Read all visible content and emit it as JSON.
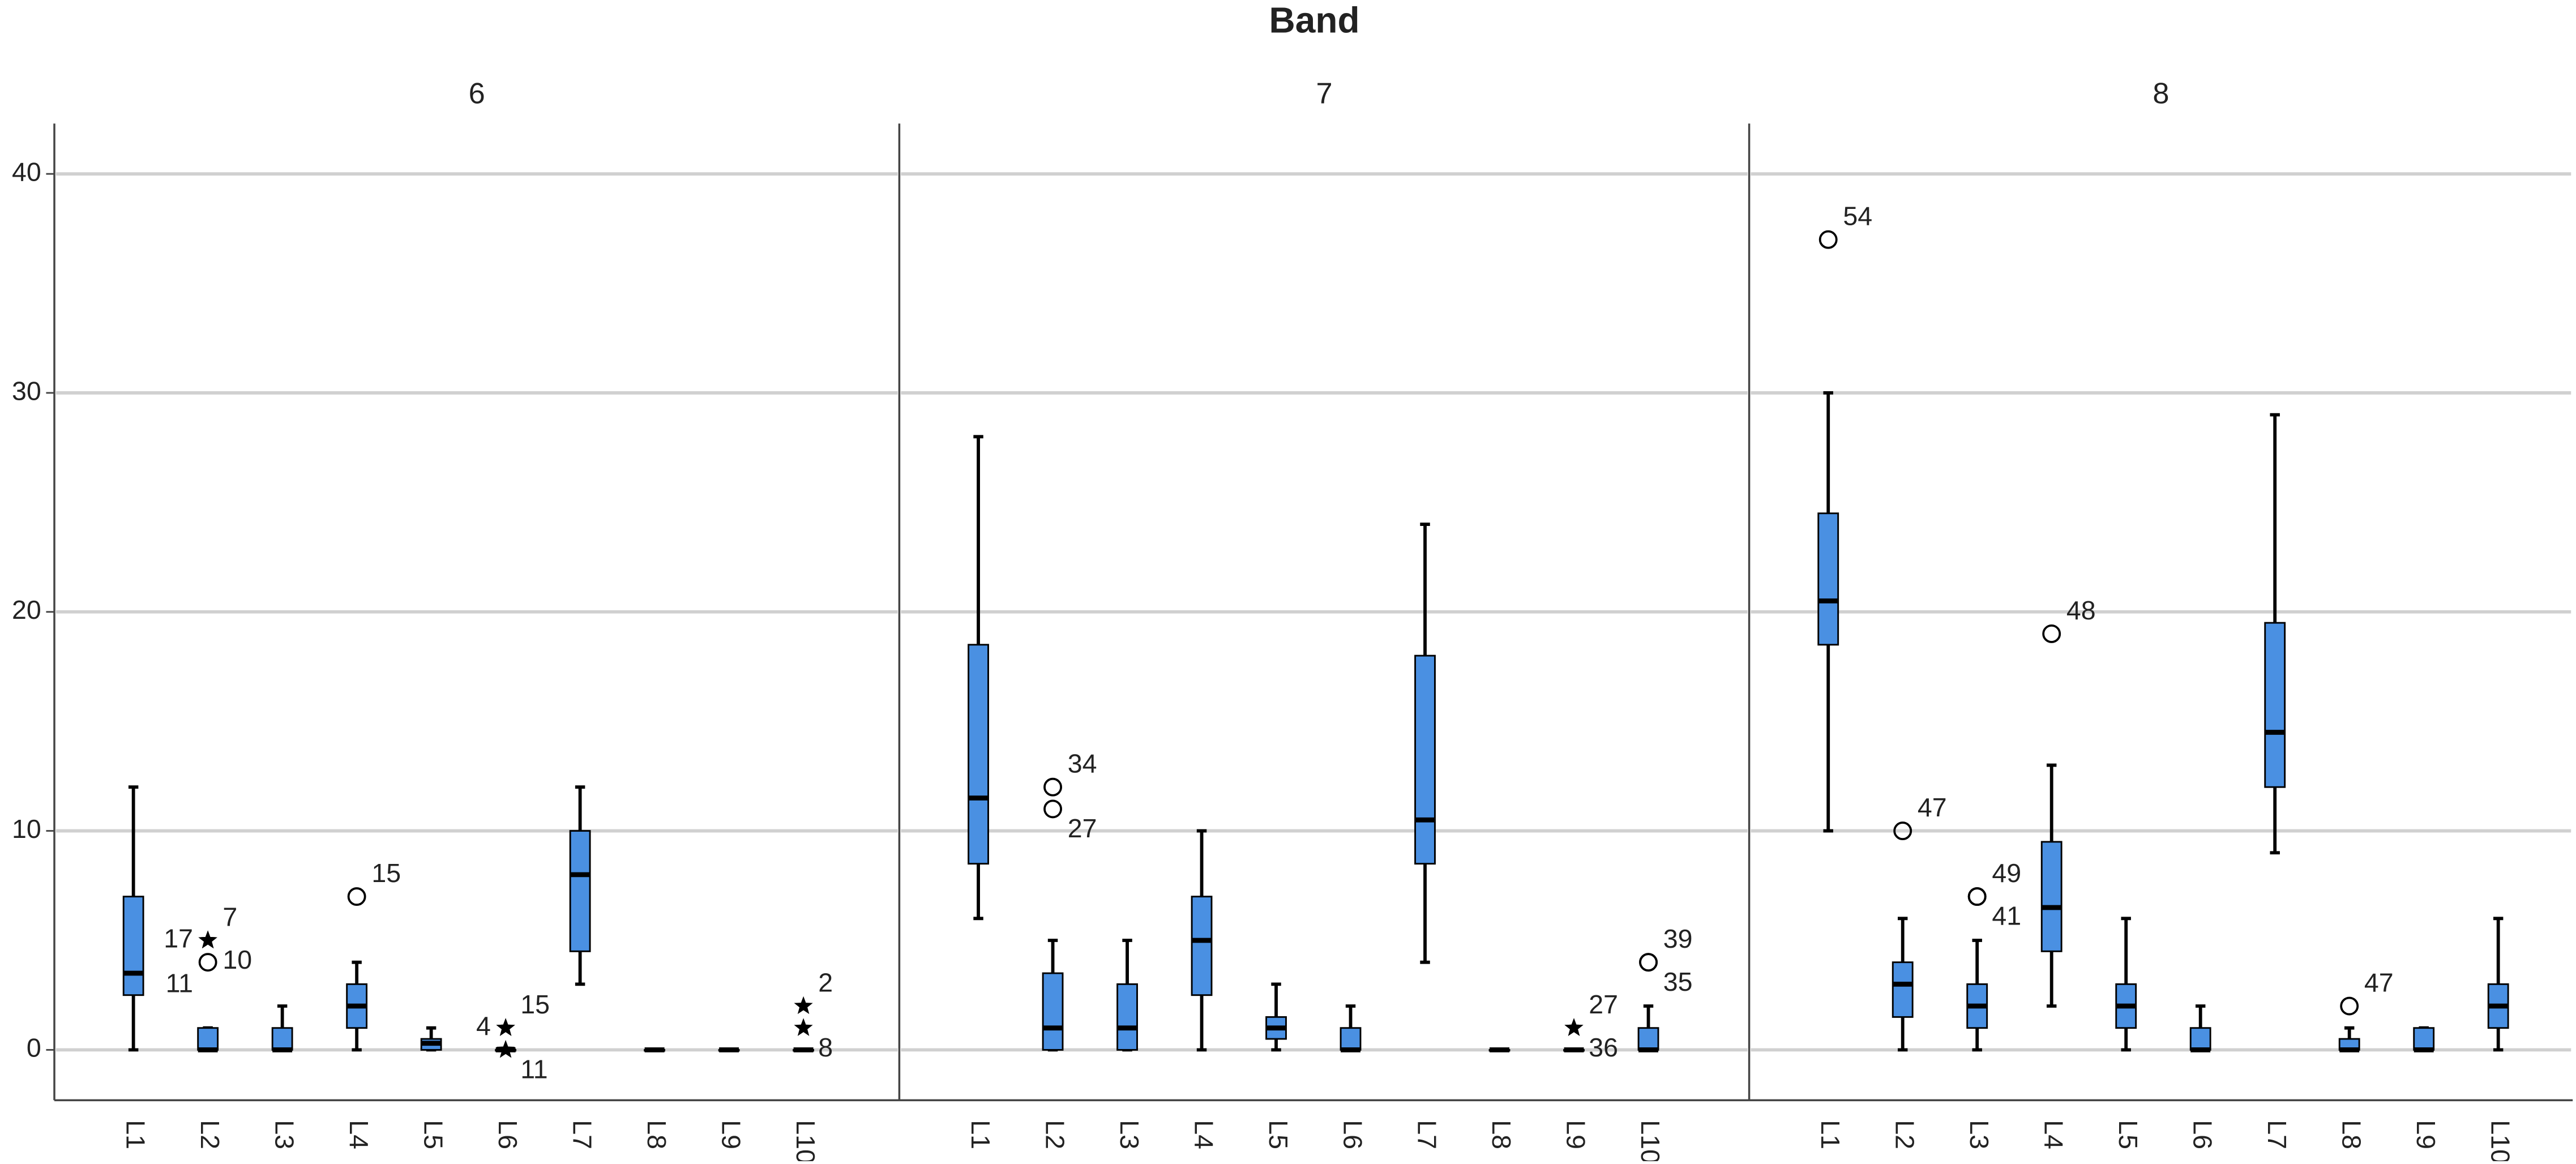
{
  "title": "Band",
  "chart_data": [
    {
      "type": "box",
      "title": "6",
      "color": "#4a90e2",
      "ylim": [
        -2.3,
        42.3
      ],
      "yticks": [
        0,
        10,
        20,
        30,
        40
      ],
      "grid": true,
      "categories": [
        "L1",
        "L2",
        "L3",
        "L4",
        "L5",
        "L6",
        "L7",
        "L8",
        "L9",
        "L10"
      ],
      "boxes": [
        {
          "min": 0,
          "q1": 2.5,
          "median": 3.5,
          "q3": 7,
          "max": 12,
          "outliers": []
        },
        {
          "min": 0,
          "q1": 0,
          "median": 0,
          "q3": 1,
          "max": 1,
          "outliers": [
            {
              "value": 5,
              "marker": "star",
              "label": "7"
            },
            {
              "value": 5,
              "marker": "star",
              "label": "10"
            },
            {
              "value": 5,
              "marker": "star",
              "label": "17"
            },
            {
              "value": 4,
              "marker": "circle",
              "label": "11"
            }
          ]
        },
        {
          "min": 0,
          "q1": 0,
          "median": 0,
          "q3": 1,
          "max": 2,
          "outliers": []
        },
        {
          "min": 0,
          "q1": 1,
          "median": 2,
          "q3": 3,
          "max": 4,
          "outliers": [
            {
              "value": 7,
              "marker": "circle",
              "label": "15"
            }
          ]
        },
        {
          "min": 0,
          "q1": 0,
          "median": 0.3,
          "q3": 0.5,
          "max": 1,
          "outliers": []
        },
        {
          "min": 0,
          "q1": 0,
          "median": 0,
          "q3": 0,
          "max": 0,
          "outliers": [
            {
              "value": 1,
              "marker": "star",
              "label": "15"
            },
            {
              "value": 0,
              "marker": "star",
              "label": "11"
            },
            {
              "value": 1,
              "marker": "star",
              "label": "4"
            }
          ]
        },
        {
          "min": 3,
          "q1": 4.5,
          "median": 8,
          "q3": 10,
          "max": 12,
          "outliers": []
        },
        {
          "min": 0,
          "q1": 0,
          "median": 0,
          "q3": 0,
          "max": 0,
          "outliers": []
        },
        {
          "min": 0,
          "q1": 0,
          "median": 0,
          "q3": 0,
          "max": 0,
          "outliers": []
        },
        {
          "min": 0,
          "q1": 0,
          "median": 0,
          "q3": 0,
          "max": 0,
          "outliers": [
            {
              "value": 2,
              "marker": "star",
              "label": "2"
            },
            {
              "value": 1,
              "marker": "star",
              "label": "8"
            }
          ]
        }
      ]
    },
    {
      "type": "box",
      "title": "7",
      "color": "#4a90e2",
      "ylim": [
        -2.3,
        42.3
      ],
      "yticks": [
        0,
        10,
        20,
        30,
        40
      ],
      "grid": true,
      "categories": [
        "L1",
        "L2",
        "L3",
        "L4",
        "L5",
        "L6",
        "L7",
        "L8",
        "L9",
        "L10"
      ],
      "boxes": [
        {
          "min": 6,
          "q1": 8.5,
          "median": 11.5,
          "q3": 18.5,
          "max": 28,
          "outliers": []
        },
        {
          "min": 0,
          "q1": 0,
          "median": 1,
          "q3": 3.5,
          "max": 5,
          "outliers": [
            {
              "value": 12,
              "marker": "circle",
              "label": "34"
            },
            {
              "value": 11,
              "marker": "circle",
              "label": "27"
            }
          ]
        },
        {
          "min": 0,
          "q1": 0,
          "median": 1,
          "q3": 3,
          "max": 5,
          "outliers": []
        },
        {
          "min": 0,
          "q1": 2.5,
          "median": 5,
          "q3": 7,
          "max": 10,
          "outliers": []
        },
        {
          "min": 0,
          "q1": 0.5,
          "median": 1,
          "q3": 1.5,
          "max": 3,
          "outliers": []
        },
        {
          "min": 0,
          "q1": 0,
          "median": 0,
          "q3": 1,
          "max": 2,
          "outliers": []
        },
        {
          "min": 4,
          "q1": 8.5,
          "median": 10.5,
          "q3": 18,
          "max": 24,
          "outliers": []
        },
        {
          "min": 0,
          "q1": 0,
          "median": 0,
          "q3": 0,
          "max": 0,
          "outliers": []
        },
        {
          "min": 0,
          "q1": 0,
          "median": 0,
          "q3": 0,
          "max": 0,
          "outliers": [
            {
              "value": 1,
              "marker": "star",
              "label": "27"
            },
            {
              "value": 1,
              "marker": "star",
              "label": "36"
            }
          ]
        },
        {
          "min": 0,
          "q1": 0,
          "median": 0,
          "q3": 1,
          "max": 2,
          "outliers": [
            {
              "value": 4,
              "marker": "circle",
              "label": "39"
            },
            {
              "value": 4,
              "marker": "circle",
              "label": "35"
            }
          ]
        }
      ]
    },
    {
      "type": "box",
      "title": "8",
      "color": "#4a90e2",
      "ylim": [
        -2.3,
        42.3
      ],
      "yticks": [
        0,
        10,
        20,
        30,
        40
      ],
      "grid": true,
      "categories": [
        "L1",
        "L2",
        "L3",
        "L4",
        "L5",
        "L6",
        "L7",
        "L8",
        "L9",
        "L10"
      ],
      "boxes": [
        {
          "min": 10,
          "q1": 18.5,
          "median": 20.5,
          "q3": 24.5,
          "max": 30,
          "outliers": [
            {
              "value": 37,
              "marker": "circle",
              "label": "54"
            }
          ]
        },
        {
          "min": 0,
          "q1": 1.5,
          "median": 3,
          "q3": 4,
          "max": 6,
          "outliers": [
            {
              "value": 10,
              "marker": "circle",
              "label": "47"
            }
          ]
        },
        {
          "min": 0,
          "q1": 1,
          "median": 2,
          "q3": 3,
          "max": 5,
          "outliers": [
            {
              "value": 7,
              "marker": "circle",
              "label": "49"
            },
            {
              "value": 7,
              "marker": "circle",
              "label": "41"
            }
          ]
        },
        {
          "min": 2,
          "q1": 4.5,
          "median": 6.5,
          "q3": 9.5,
          "max": 13,
          "outliers": [
            {
              "value": 19,
              "marker": "circle",
              "label": "48"
            }
          ]
        },
        {
          "min": 0,
          "q1": 1,
          "median": 2,
          "q3": 3,
          "max": 6,
          "outliers": []
        },
        {
          "min": 0,
          "q1": 0,
          "median": 0,
          "q3": 1,
          "max": 2,
          "outliers": []
        },
        {
          "min": 9,
          "q1": 12,
          "median": 14.5,
          "q3": 19.5,
          "max": 29,
          "outliers": []
        },
        {
          "min": 0,
          "q1": 0,
          "median": 0,
          "q3": 0.5,
          "max": 1,
          "outliers": [
            {
              "value": 2,
              "marker": "circle",
              "label": "47"
            }
          ]
        },
        {
          "min": 0,
          "q1": 0,
          "median": 0,
          "q3": 1,
          "max": 1,
          "outliers": []
        },
        {
          "min": 0,
          "q1": 1,
          "median": 2,
          "q3": 3,
          "max": 6,
          "outliers": []
        }
      ]
    }
  ]
}
